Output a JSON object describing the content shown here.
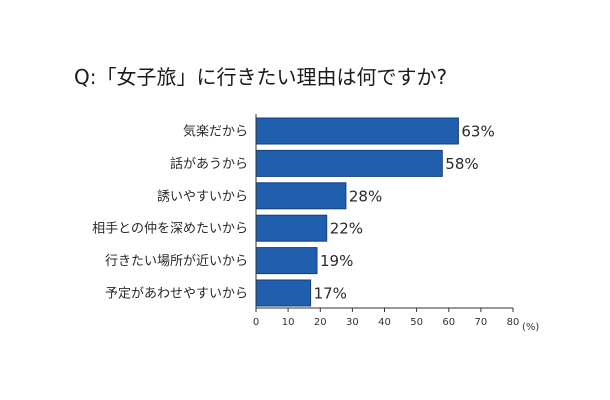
{
  "chart_data": {
    "type": "bar",
    "orientation": "horizontal",
    "title": "Q:「女子旅」に行きたい理由は何ですか?",
    "categories": [
      "気楽だから",
      "話があうから",
      "誘いやすいから",
      "相手との仲を深めたいから",
      "行きたい場所が近いから",
      "予定があわせやすいから"
    ],
    "values": [
      63,
      58,
      28,
      22,
      19,
      17
    ],
    "value_labels": [
      "63%",
      "58%",
      "28%",
      "22%",
      "19%",
      "17%"
    ],
    "xlim": [
      0,
      80
    ],
    "xticks": [
      0,
      10,
      20,
      30,
      40,
      50,
      60,
      70,
      80
    ],
    "xtick_labels": [
      "0",
      "10",
      "20",
      "30",
      "40",
      "50",
      "60",
      "70",
      "80"
    ],
    "unit_label": "(%)",
    "xlabel": "",
    "ylabel": "",
    "grid": false,
    "legend": "none",
    "bar_color": "#1f5fae",
    "bar_edge_color": "#15407a",
    "axis_color": "#333333"
  }
}
